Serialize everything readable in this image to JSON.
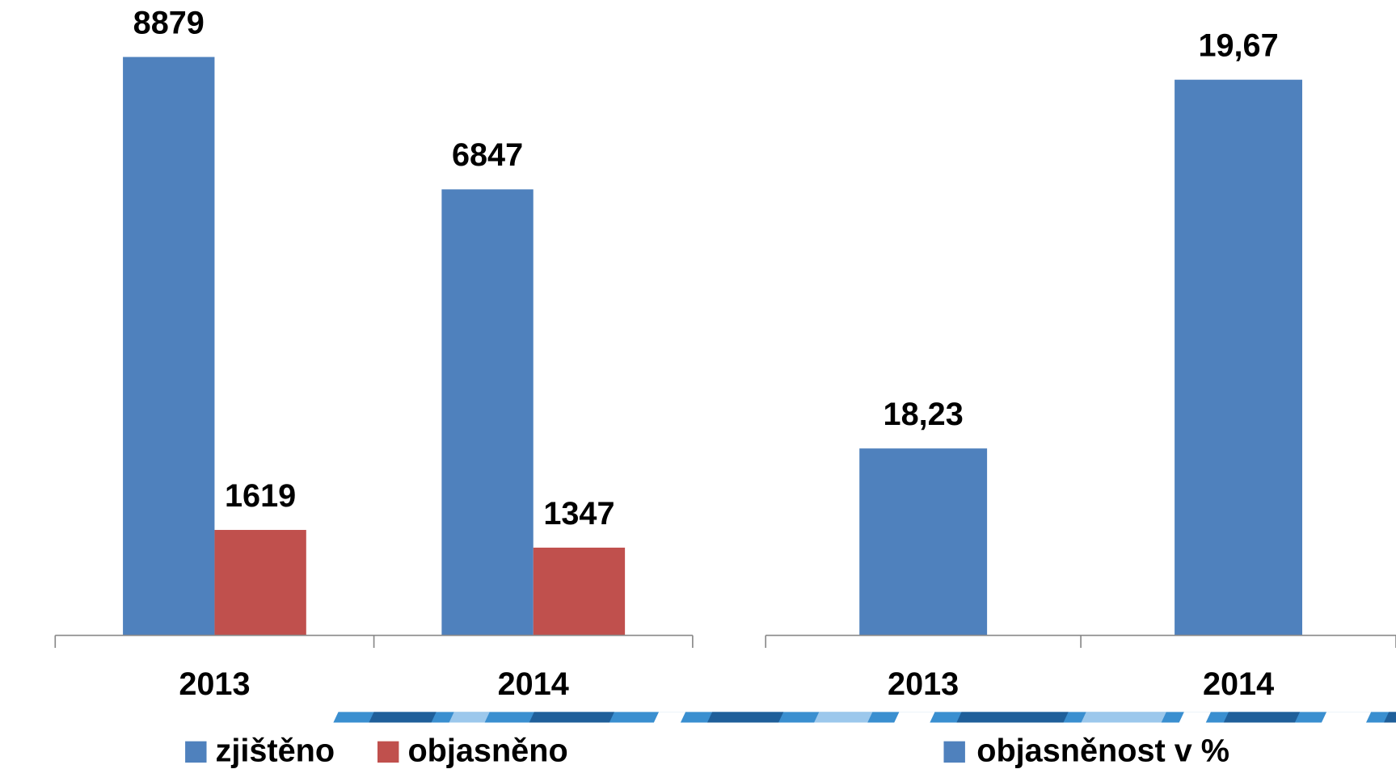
{
  "chart_data": [
    {
      "type": "bar",
      "categories": [
        "2013",
        "2014"
      ],
      "series": [
        {
          "name": "zjištěno",
          "color": "#4f81bd",
          "values": [
            8879,
            6847
          ]
        },
        {
          "name": "objasněno",
          "color": "#c0504d",
          "values": [
            1619,
            1347
          ]
        }
      ],
      "ylim": [
        0,
        9000
      ]
    },
    {
      "type": "bar",
      "categories": [
        "2013",
        "2014"
      ],
      "series": [
        {
          "name": "objasněnost v %",
          "color": "#4f81bd",
          "values": [
            18.23,
            19.67
          ],
          "value_labels": [
            "18,23",
            "19,67"
          ]
        }
      ],
      "ylim": [
        17.5,
        19.8
      ]
    }
  ]
}
